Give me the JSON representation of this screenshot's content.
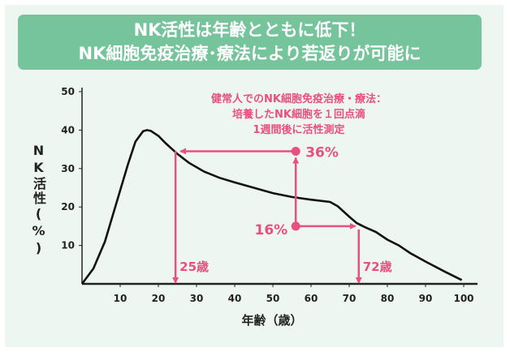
{
  "banner": {
    "line1": "NK活性は年齢とともに低下！",
    "line2": "NK細胞免疫治療･療法により若返りが可能に"
  },
  "colors": {
    "banner": "#75c49b",
    "background": "#eef6f2",
    "annotation": "#e8507f",
    "curve": "#111111"
  },
  "chart_data": {
    "type": "line",
    "xlabel": "年齢（歳）",
    "ylabel": "NK活性(%)",
    "ylabel_lines": [
      "N",
      "K",
      "活",
      "性",
      "(%)"
    ],
    "xlim": [
      0,
      100
    ],
    "ylim": [
      0,
      50
    ],
    "xticks": [
      10,
      20,
      30,
      40,
      50,
      60,
      70,
      80,
      90,
      100
    ],
    "yticks": [
      10,
      20,
      30,
      40,
      50
    ],
    "grid": false,
    "series": [
      {
        "x": [
          0,
          3,
          6,
          9,
          12,
          14,
          16,
          17,
          18,
          20,
          22,
          25,
          28,
          32,
          36,
          40,
          45,
          50,
          55,
          60,
          65,
          67,
          70,
          72,
          74,
          77,
          80,
          83,
          86,
          90,
          95,
          99.5
        ],
        "y": [
          0,
          4,
          11,
          21,
          31,
          37,
          39.7,
          40,
          39.8,
          38.5,
          36.5,
          33.8,
          31.5,
          29.2,
          27.6,
          26.4,
          25,
          23.6,
          22.6,
          21.9,
          21.3,
          20.2,
          17.5,
          15.8,
          14.8,
          13.5,
          11.5,
          10,
          8,
          5.8,
          3.2,
          1
        ]
      }
    ],
    "annotations": {
      "note_lines": [
        "健常人でのNK細胞免疫治療・療法：",
        "培養したNK細胞を１回点滴",
        "1週間後に活性測定"
      ],
      "after": {
        "label": "36%",
        "x": 56,
        "y": 34.5
      },
      "before": {
        "label": "16%",
        "x": 56,
        "y": 15
      },
      "age_after": {
        "label": "25歳",
        "x": 24.5
      },
      "age_before": {
        "label": "72歳",
        "x": 72.5
      }
    }
  }
}
